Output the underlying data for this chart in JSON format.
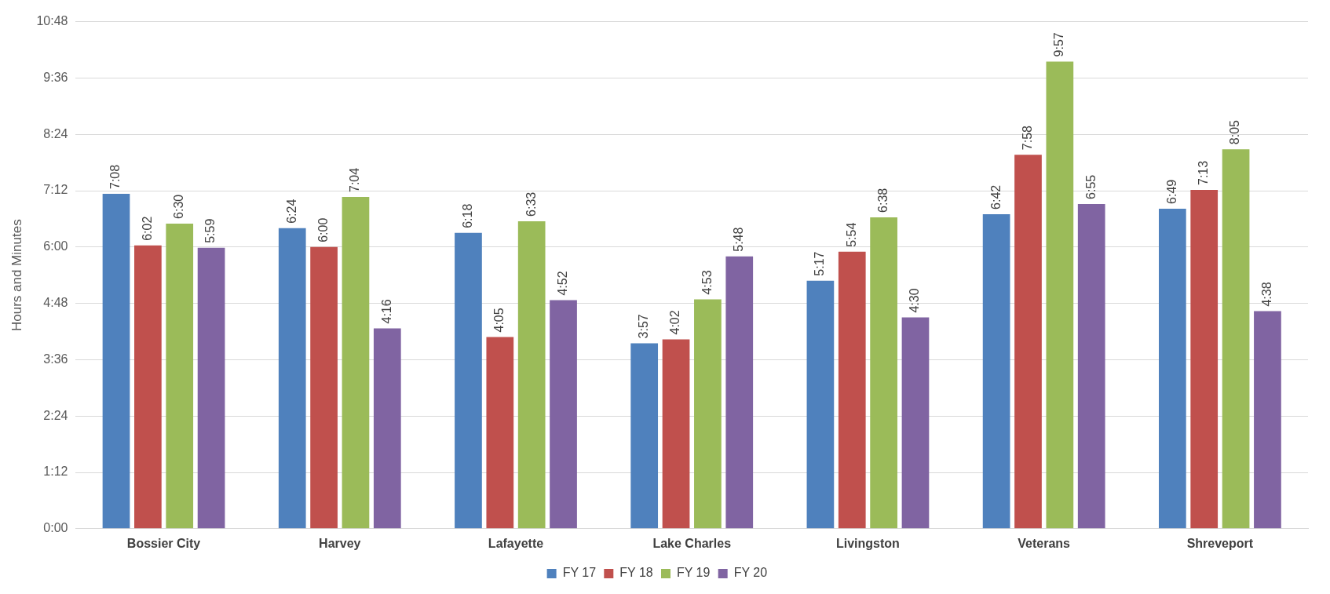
{
  "chart_data": {
    "type": "bar",
    "ylabel": "Hours and Minutes",
    "categories": [
      "Bossier City",
      "Harvey",
      "Lafayette",
      "Lake Charles",
      "Livingston",
      "Veterans",
      "Shreveport"
    ],
    "series": [
      {
        "name": "FY 17",
        "color": "#4f81bd",
        "values": [
          428,
          384,
          378,
          237,
          317,
          402,
          409
        ],
        "value_labels": [
          "7:08",
          "6:24",
          "6:18",
          "3:57",
          "5:17",
          "6:42",
          "6:49"
        ]
      },
      {
        "name": "FY 18",
        "color": "#c0504d",
        "values": [
          362,
          360,
          245,
          242,
          354,
          478,
          433
        ],
        "value_labels": [
          "6:02",
          "6:00",
          "4:05",
          "4:02",
          "5:54",
          "7:58",
          "7:13"
        ]
      },
      {
        "name": "FY 19",
        "color": "#9bbb59",
        "values": [
          390,
          424,
          393,
          293,
          398,
          597,
          485
        ],
        "value_labels": [
          "6:30",
          "7:04",
          "6:33",
          "4:53",
          "6:38",
          "9:57",
          "8:05"
        ]
      },
      {
        "name": "FY 20",
        "color": "#8064a2",
        "values": [
          359,
          256,
          292,
          348,
          270,
          415,
          278
        ],
        "value_labels": [
          "5:59",
          "4:16",
          "4:52",
          "5:48",
          "4:30",
          "6:55",
          "4:38"
        ]
      }
    ],
    "ylim": [
      0,
      648
    ],
    "yticks": [
      {
        "value": 0,
        "label": "0:00"
      },
      {
        "value": 72,
        "label": "1:12"
      },
      {
        "value": 144,
        "label": "2:24"
      },
      {
        "value": 216,
        "label": "3:36"
      },
      {
        "value": 288,
        "label": "4:48"
      },
      {
        "value": 360,
        "label": "6:00"
      },
      {
        "value": 432,
        "label": "7:12"
      },
      {
        "value": 504,
        "label": "8:24"
      },
      {
        "value": 576,
        "label": "9:36"
      },
      {
        "value": 648,
        "label": "10:48"
      }
    ],
    "grid": "y",
    "legend": "bottom"
  }
}
